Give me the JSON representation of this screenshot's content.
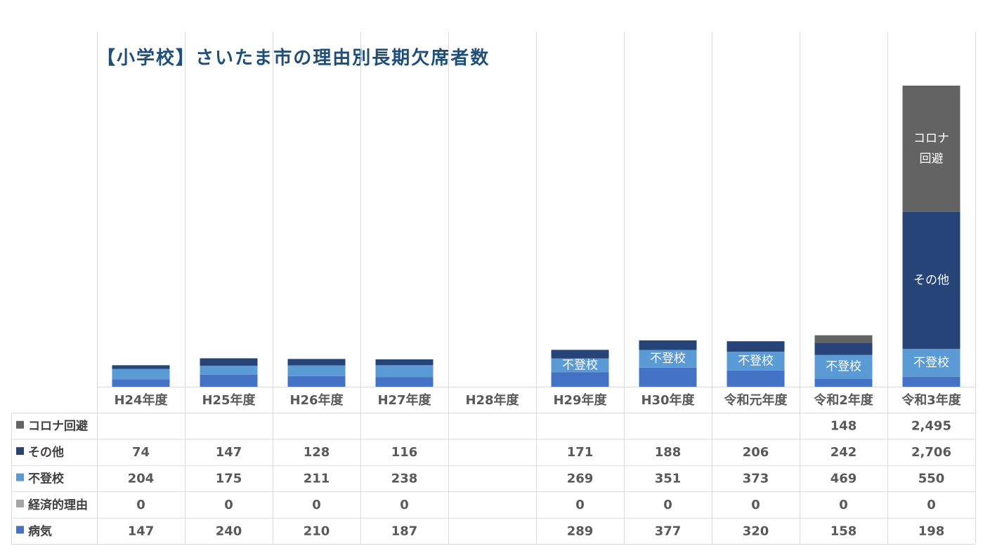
{
  "chart_data": {
    "type": "bar",
    "stacked": true,
    "title": "【小学校】さいたま市の理由別長期欠席者数",
    "categories": [
      "H24年度",
      "H25年度",
      "H26年度",
      "H27年度",
      "H28年度",
      "H29年度",
      "H30年度",
      "令和元年度",
      "令和2年度",
      "令和3年度"
    ],
    "series": [
      {
        "name": "病気",
        "color": "#4472c4",
        "values": [
          147,
          240,
          210,
          187,
          null,
          289,
          377,
          320,
          158,
          198
        ],
        "display": [
          "147",
          "240",
          "210",
          "187",
          "",
          "289",
          "377",
          "320",
          "158",
          "198"
        ]
      },
      {
        "name": "経済的理由",
        "color": "#a5a5a5",
        "values": [
          0,
          0,
          0,
          0,
          null,
          0,
          0,
          0,
          0,
          0
        ],
        "display": [
          "0",
          "0",
          "0",
          "0",
          "",
          "0",
          "0",
          "0",
          "0",
          "0"
        ]
      },
      {
        "name": "不登校",
        "color": "#5b9bd5",
        "values": [
          204,
          175,
          211,
          238,
          null,
          269,
          351,
          373,
          469,
          550
        ],
        "display": [
          "204",
          "175",
          "211",
          "238",
          "",
          "269",
          "351",
          "373",
          "469",
          "550"
        ]
      },
      {
        "name": "その他",
        "color": "#264478",
        "values": [
          74,
          147,
          128,
          116,
          null,
          171,
          188,
          206,
          242,
          2706
        ],
        "display": [
          "74",
          "147",
          "128",
          "116",
          "",
          "171",
          "188",
          "206",
          "242",
          "2,706"
        ]
      },
      {
        "name": "コロナ回避",
        "color": "#636363",
        "values": [
          null,
          null,
          null,
          null,
          null,
          null,
          null,
          null,
          148,
          2495
        ],
        "display": [
          "",
          "",
          "",
          "",
          "",
          "",
          "",
          "",
          "148",
          "2,495"
        ]
      }
    ],
    "segment_labels": [
      {
        "category": "H29年度",
        "series": "不登校",
        "text": "不登校"
      },
      {
        "category": "H30年度",
        "series": "不登校",
        "text": "不登校"
      },
      {
        "category": "令和元年度",
        "series": "不登校",
        "text": "不登校"
      },
      {
        "category": "令和2年度",
        "series": "不登校",
        "text": "不登校"
      },
      {
        "category": "令和3年度",
        "series": "不登校",
        "text": "不登校"
      },
      {
        "category": "令和3年度",
        "series": "その他",
        "text": "その他"
      },
      {
        "category": "令和3年度",
        "series": "コロナ回避",
        "text": "コロナ\n回避"
      }
    ],
    "data_table": true,
    "ylim": [
      0,
      6000
    ],
    "grid": false
  }
}
